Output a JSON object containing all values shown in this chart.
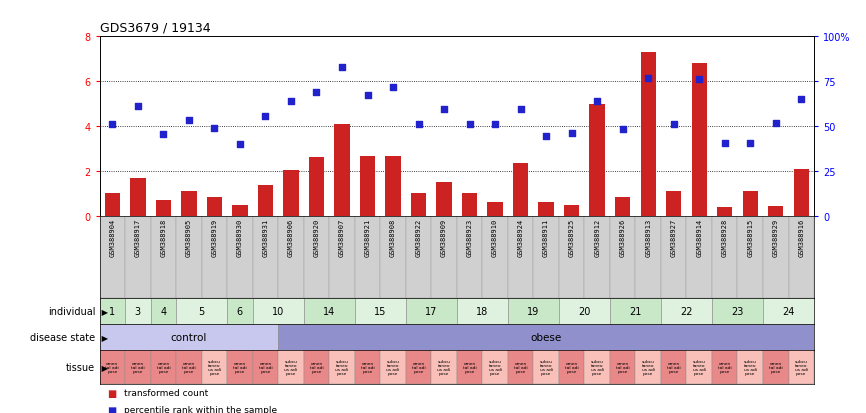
{
  "title": "GDS3679 / 19134",
  "samples": [
    "GSM388904",
    "GSM388917",
    "GSM388918",
    "GSM388905",
    "GSM388919",
    "GSM388930",
    "GSM388931",
    "GSM388906",
    "GSM388920",
    "GSM388907",
    "GSM388921",
    "GSM388908",
    "GSM388922",
    "GSM388909",
    "GSM388923",
    "GSM388910",
    "GSM388924",
    "GSM388911",
    "GSM388925",
    "GSM388912",
    "GSM388926",
    "GSM388913",
    "GSM388927",
    "GSM388914",
    "GSM388928",
    "GSM388915",
    "GSM388929",
    "GSM388916"
  ],
  "bar_values": [
    1.0,
    1.7,
    0.7,
    1.1,
    0.85,
    0.5,
    1.35,
    2.05,
    2.6,
    4.1,
    2.65,
    2.65,
    1.0,
    1.5,
    1.0,
    0.6,
    2.35,
    0.6,
    0.5,
    5.0,
    0.85,
    7.3,
    1.1,
    6.8,
    0.4,
    1.1,
    0.45,
    2.1
  ],
  "dot_values": [
    4.1,
    4.9,
    3.65,
    4.25,
    3.9,
    3.2,
    4.45,
    5.1,
    5.5,
    6.65,
    5.4,
    5.75,
    4.1,
    4.75,
    4.1,
    4.1,
    4.75,
    3.55,
    3.7,
    5.1,
    3.85,
    6.15,
    4.1,
    6.1,
    3.25,
    3.25,
    4.15,
    5.2
  ],
  "indiv_data": [
    [
      0,
      0,
      "1"
    ],
    [
      1,
      1,
      "3"
    ],
    [
      2,
      2,
      "4"
    ],
    [
      3,
      4,
      "5"
    ],
    [
      5,
      5,
      "6"
    ],
    [
      6,
      7,
      "10"
    ],
    [
      8,
      9,
      "14"
    ],
    [
      10,
      11,
      "15"
    ],
    [
      12,
      13,
      "17"
    ],
    [
      14,
      15,
      "18"
    ],
    [
      16,
      17,
      "19"
    ],
    [
      18,
      19,
      "20"
    ],
    [
      20,
      21,
      "21"
    ],
    [
      22,
      23,
      "22"
    ],
    [
      24,
      25,
      "23"
    ],
    [
      26,
      27,
      "24"
    ]
  ],
  "tissue_seq": [
    "omental",
    "omental",
    "omental",
    "omental",
    "subcutaneous",
    "omental",
    "omental",
    "subcutaneous",
    "omental",
    "subcutaneous",
    "omental",
    "subcutaneous",
    "omental",
    "subcutaneous",
    "omental",
    "subcutaneous",
    "omental",
    "subcutaneous",
    "omental",
    "subcutaneous",
    "omental",
    "subcutaneous",
    "omental",
    "subcutaneous",
    "omental",
    "subcutaneous",
    "omental",
    "subcutaneous"
  ],
  "control_color": "#c8c8ee",
  "obese_color": "#9090cc",
  "bar_color": "#cc2222",
  "dot_color": "#2222cc",
  "ylim_left": [
    0,
    8
  ],
  "ylim_right": [
    0,
    100
  ],
  "yticks_left": [
    0,
    2,
    4,
    6,
    8
  ],
  "yticks_right": [
    0,
    25,
    50,
    75,
    100
  ],
  "grid_values": [
    2,
    4,
    6
  ],
  "indiv_green1": "#c8e8c8",
  "indiv_green2": "#dff2df",
  "tissue_omental_color": "#e88888",
  "tissue_subcut_color": "#f8c0b8",
  "sample_bg": "#d0d0d0"
}
